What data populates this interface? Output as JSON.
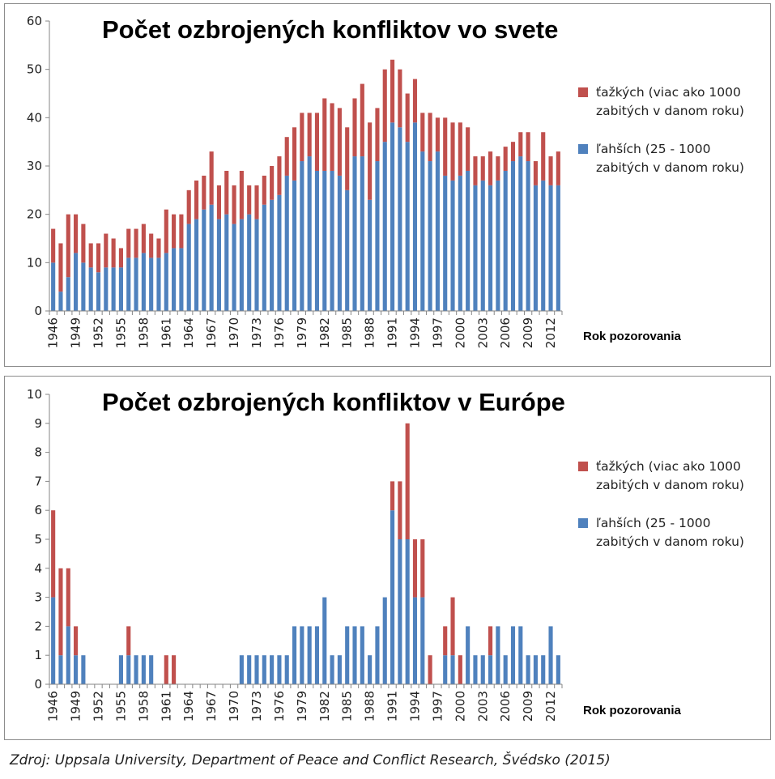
{
  "colors": {
    "severe": "#C0504D",
    "light": "#4F81BD",
    "axis": "#868686",
    "grid": "#d9d9d9"
  },
  "source_text": "Zdroj: Uppsala University, Department of Peace and Conflict Research, Švédsko (2015)",
  "chart_data": [
    {
      "type": "bar",
      "stacked": true,
      "title": "Počet ozbrojených konfliktov vo svete",
      "xlabel": "Rok pozorovania",
      "ylabel": "",
      "ylim": [
        0,
        60
      ],
      "yticks": [
        0,
        10,
        20,
        30,
        40,
        50,
        60
      ],
      "legend_position": "right",
      "x": [
        1946,
        1947,
        1948,
        1949,
        1950,
        1951,
        1952,
        1953,
        1954,
        1955,
        1956,
        1957,
        1958,
        1959,
        1960,
        1961,
        1962,
        1963,
        1964,
        1965,
        1966,
        1967,
        1968,
        1969,
        1970,
        1971,
        1972,
        1973,
        1974,
        1975,
        1976,
        1977,
        1978,
        1979,
        1980,
        1981,
        1982,
        1983,
        1984,
        1985,
        1986,
        1987,
        1988,
        1989,
        1990,
        1991,
        1992,
        1993,
        1994,
        1995,
        1996,
        1997,
        1998,
        1999,
        2000,
        2001,
        2002,
        2003,
        2004,
        2005,
        2006,
        2007,
        2008,
        2009,
        2010,
        2011,
        2012,
        2013
      ],
      "x_tick_labels": [
        "1946",
        "1949",
        "1952",
        "1955",
        "1958",
        "1961",
        "1964",
        "1967",
        "1970",
        "1973",
        "1976",
        "1979",
        "1982",
        "1985",
        "1988",
        "1991",
        "1994",
        "1997",
        "2000",
        "2003",
        "2006",
        "2009",
        "2012"
      ],
      "series": [
        {
          "name": "ľahších (25 - 1000\nzabitých v danom roku)",
          "key": "light",
          "values": [
            10,
            4,
            7,
            12,
            10,
            9,
            8,
            9,
            9,
            9,
            11,
            11,
            12,
            11,
            11,
            12,
            13,
            13,
            18,
            19,
            21,
            22,
            19,
            20,
            18,
            19,
            20,
            19,
            22,
            23,
            24,
            28,
            27,
            31,
            32,
            29,
            29,
            29,
            28,
            25,
            32,
            32,
            23,
            31,
            35,
            39,
            38,
            35,
            39,
            33,
            31,
            33,
            28,
            27,
            28,
            29,
            26,
            27,
            26,
            27,
            29,
            31,
            32,
            31,
            26,
            27,
            26,
            26
          ]
        },
        {
          "name": "ťažkých (viac ako 1000\nzabitých v danom roku)",
          "key": "severe",
          "values": [
            7,
            10,
            13,
            8,
            8,
            5,
            6,
            7,
            6,
            4,
            6,
            6,
            6,
            5,
            4,
            9,
            7,
            7,
            7,
            8,
            7,
            11,
            7,
            9,
            8,
            10,
            6,
            7,
            6,
            7,
            8,
            8,
            11,
            10,
            9,
            12,
            15,
            14,
            14,
            13,
            12,
            15,
            16,
            11,
            15,
            13,
            12,
            10,
            9,
            8,
            10,
            7,
            12,
            12,
            11,
            9,
            6,
            5,
            7,
            5,
            5,
            4,
            5,
            6,
            5,
            10,
            6,
            7
          ]
        }
      ]
    },
    {
      "type": "bar",
      "stacked": true,
      "title": "Počet ozbrojených konfliktov v Európe",
      "xlabel": "Rok pozorovania",
      "ylabel": "",
      "ylim": [
        0,
        10
      ],
      "yticks": [
        0,
        1,
        2,
        3,
        4,
        5,
        6,
        7,
        8,
        9,
        10
      ],
      "legend_position": "right",
      "x": [
        1946,
        1947,
        1948,
        1949,
        1950,
        1951,
        1952,
        1953,
        1954,
        1955,
        1956,
        1957,
        1958,
        1959,
        1960,
        1961,
        1962,
        1963,
        1964,
        1965,
        1966,
        1967,
        1968,
        1969,
        1970,
        1971,
        1972,
        1973,
        1974,
        1975,
        1976,
        1977,
        1978,
        1979,
        1980,
        1981,
        1982,
        1983,
        1984,
        1985,
        1986,
        1987,
        1988,
        1989,
        1990,
        1991,
        1992,
        1993,
        1994,
        1995,
        1996,
        1997,
        1998,
        1999,
        2000,
        2001,
        2002,
        2003,
        2004,
        2005,
        2006,
        2007,
        2008,
        2009,
        2010,
        2011,
        2012,
        2013
      ],
      "x_tick_labels": [
        "1946",
        "1949",
        "1952",
        "1955",
        "1958",
        "1961",
        "1964",
        "1967",
        "1970",
        "1973",
        "1976",
        "1979",
        "1982",
        "1985",
        "1988",
        "1991",
        "1994",
        "1997",
        "2000",
        "2003",
        "2006",
        "2009",
        "2012"
      ],
      "series": [
        {
          "name": "ľahších (25 - 1000\nzabitých v danom roku)",
          "key": "light",
          "values": [
            3,
            1,
            2,
            1,
            1,
            0,
            0,
            0,
            0,
            1,
            1,
            1,
            1,
            1,
            0,
            0,
            0,
            0,
            0,
            0,
            0,
            0,
            0,
            0,
            0,
            1,
            1,
            1,
            1,
            1,
            1,
            1,
            2,
            2,
            2,
            2,
            3,
            1,
            1,
            2,
            2,
            2,
            1,
            2,
            3,
            6,
            5,
            5,
            3,
            3,
            0,
            0,
            1,
            1,
            0,
            2,
            1,
            1,
            1,
            2,
            1,
            2,
            2,
            1,
            1,
            1,
            2,
            1
          ]
        },
        {
          "name": "ťažkých (viac ako 1000\nzabitých v danom roku)",
          "key": "severe",
          "values": [
            3,
            3,
            2,
            1,
            0,
            0,
            0,
            0,
            0,
            0,
            1,
            0,
            0,
            0,
            0,
            1,
            1,
            0,
            0,
            0,
            0,
            0,
            0,
            0,
            0,
            0,
            0,
            0,
            0,
            0,
            0,
            0,
            0,
            0,
            0,
            0,
            0,
            0,
            0,
            0,
            0,
            0,
            0,
            0,
            0,
            1,
            2,
            4,
            2,
            2,
            1,
            0,
            1,
            2,
            1,
            0,
            0,
            0,
            1,
            0,
            0,
            0,
            0,
            0,
            0,
            0,
            0,
            0
          ]
        }
      ]
    }
  ]
}
